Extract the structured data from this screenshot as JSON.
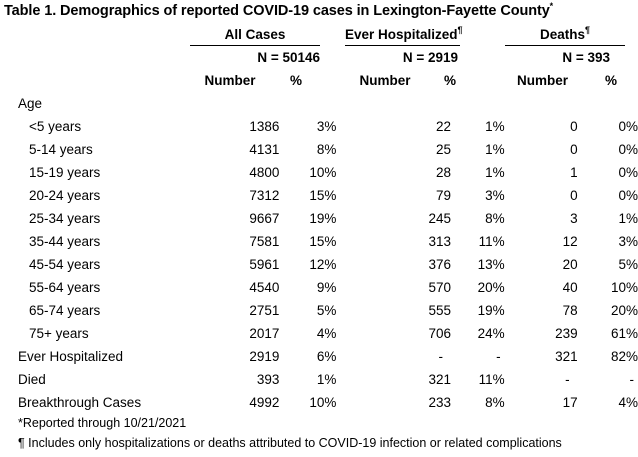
{
  "title": "Table 1. Demographics of reported COVID-19 cases in Lexington-Fayette County",
  "title_marker": "*",
  "groups": [
    {
      "label": "All Cases",
      "marker": "",
      "n_text": "N = 50146"
    },
    {
      "label": "Ever Hospitalized",
      "marker": "¶",
      "n_text": "N = 2919"
    },
    {
      "label": "Deaths",
      "marker": "¶",
      "n_text": "N = 393"
    }
  ],
  "subheaders": {
    "number": "Number",
    "percent": "%"
  },
  "section_label": "Age",
  "rows": [
    {
      "label": "<5 years",
      "v": [
        "1386",
        "3%",
        "22",
        "1%",
        "0",
        "0%"
      ]
    },
    {
      "label": "5-14 years",
      "v": [
        "4131",
        "8%",
        "25",
        "1%",
        "0",
        "0%"
      ]
    },
    {
      "label": "15-19 years",
      "v": [
        "4800",
        "10%",
        "28",
        "1%",
        "1",
        "0%"
      ]
    },
    {
      "label": "20-24 years",
      "v": [
        "7312",
        "15%",
        "79",
        "3%",
        "0",
        "0%"
      ]
    },
    {
      "label": "25-34 years",
      "v": [
        "9667",
        "19%",
        "245",
        "8%",
        "3",
        "1%"
      ]
    },
    {
      "label": "35-44 years",
      "v": [
        "7581",
        "15%",
        "313",
        "11%",
        "12",
        "3%"
      ]
    },
    {
      "label": "45-54 years",
      "v": [
        "5961",
        "12%",
        "376",
        "13%",
        "20",
        "5%"
      ]
    },
    {
      "label": "55-64 years",
      "v": [
        "4540",
        "9%",
        "570",
        "20%",
        "40",
        "10%"
      ]
    },
    {
      "label": "65-74 years",
      "v": [
        "2751",
        "5%",
        "555",
        "19%",
        "78",
        "20%"
      ]
    },
    {
      "label": "75+ years",
      "v": [
        "2017",
        "4%",
        "706",
        "24%",
        "239",
        "61%"
      ]
    }
  ],
  "summary_rows": [
    {
      "label": "Ever Hospitalized",
      "v": [
        "2919",
        "6%",
        "-",
        "-",
        "321",
        "82%"
      ]
    },
    {
      "label": "Died",
      "v": [
        "393",
        "1%",
        "321",
        "11%",
        "-",
        "-"
      ]
    },
    {
      "label": "Breakthrough Cases",
      "v": [
        "4992",
        "10%",
        "233",
        "8%",
        "17",
        "4%"
      ]
    }
  ],
  "footnotes": [
    "*Reported through 10/21/2021",
    "¶ Includes only hospitalizations or deaths attributed to COVID-19 infection or related complications"
  ]
}
